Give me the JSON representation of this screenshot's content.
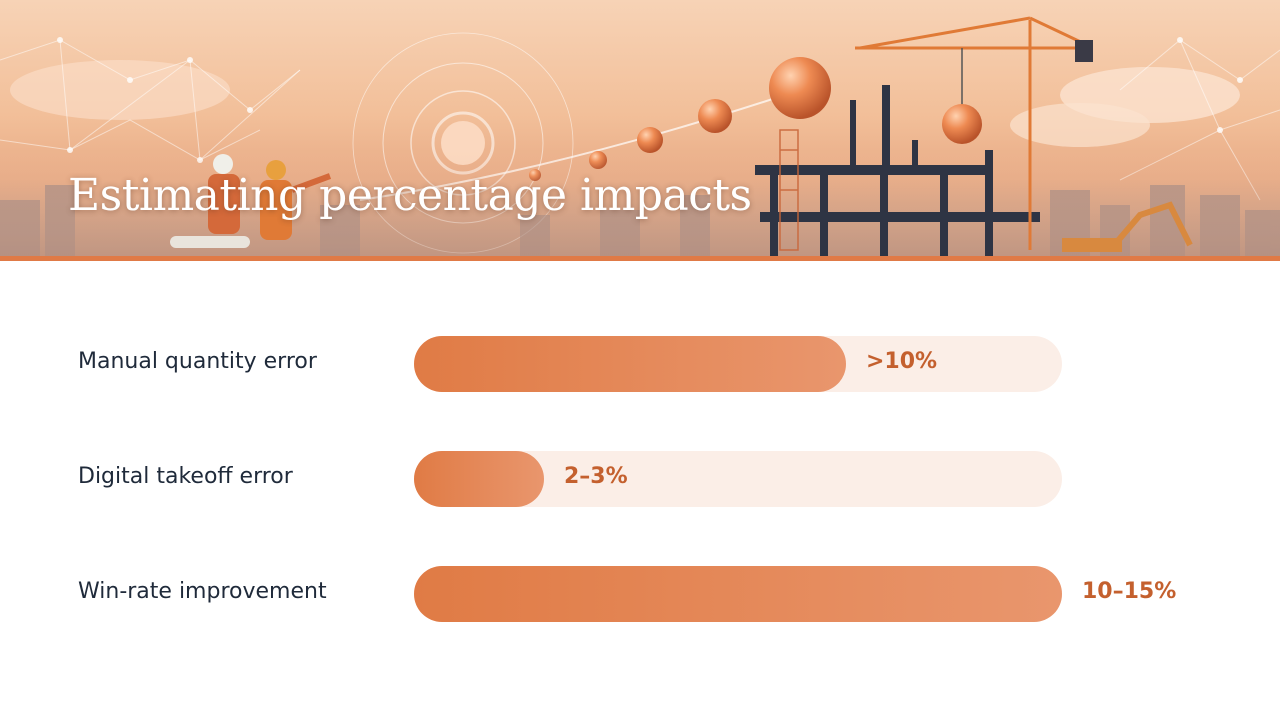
{
  "header": {
    "title": "Estimating percentage impacts",
    "banner_icon": "construction-site-illustration"
  },
  "colors": {
    "accent": "#e07b45",
    "accent_light": "#e9966d",
    "track": "#fbeee7",
    "value_text": "#c4602e",
    "label_text": "#1f2a3a"
  },
  "chart_data": {
    "type": "bar",
    "orientation": "horizontal",
    "title": "",
    "xlabel": "",
    "ylabel": "",
    "xlim": [
      0,
      15
    ],
    "grid": false,
    "categories": [
      "Manual quantity error",
      "Digital takeoff error",
      "Win-rate improvement"
    ],
    "values": [
      10,
      2,
      15
    ],
    "value_labels": [
      ">10%",
      "2–3%",
      "10–15%"
    ]
  }
}
